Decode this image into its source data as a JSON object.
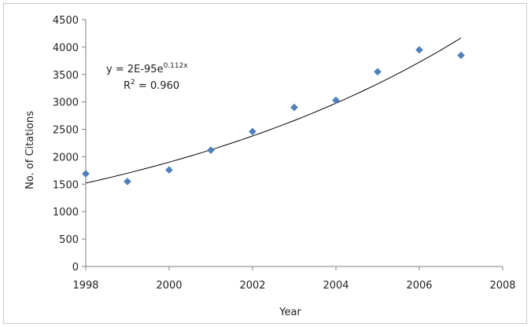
{
  "chart_data": {
    "type": "scatter",
    "xlabel": "Year",
    "ylabel": "No. of Citations",
    "xlim": [
      1998,
      2008
    ],
    "ylim": [
      0,
      4500
    ],
    "x_ticks": [
      "1998",
      "2000",
      "2002",
      "2004",
      "2006",
      "2008"
    ],
    "y_ticks": [
      "0",
      "500",
      "1000",
      "1500",
      "2000",
      "2500",
      "3000",
      "3500",
      "4000",
      "4500"
    ],
    "grid": false,
    "legend": "none",
    "series": [
      {
        "x": [
          1998,
          1999,
          2000,
          2001,
          2002,
          2003,
          2004,
          2005,
          2006,
          2007
        ],
        "y": [
          1690,
          1550,
          1760,
          2120,
          2460,
          2900,
          3030,
          3550,
          3950,
          3850
        ],
        "color": "#4f81bd",
        "marker": "diamond"
      }
    ],
    "trendline": {
      "type": "exponential",
      "color": "#000000",
      "x_range": [
        1998,
        2007
      ],
      "y_start": 1520,
      "growth_rate": 0.112,
      "equation_main": "y = 2E-95e",
      "equation_exponent": "0.112x",
      "r2_prefix": "R",
      "r2_superscript": "2",
      "r2_value": " = 0.960"
    }
  }
}
